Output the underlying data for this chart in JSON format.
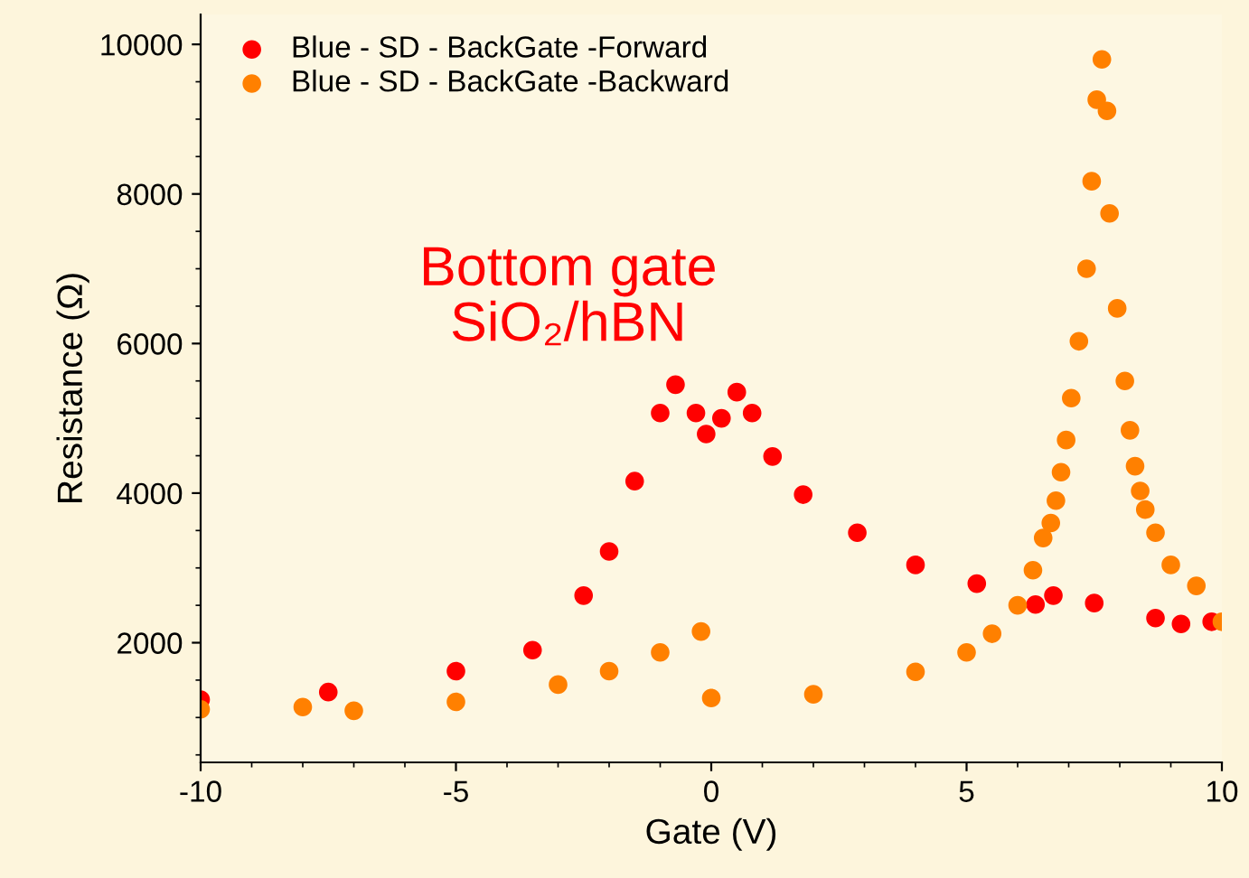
{
  "chart_data": {
    "type": "scatter",
    "xlabel": "Gate (V)",
    "ylabel": "Resistance (Ω)",
    "xlim": [
      -10,
      10
    ],
    "xticks": [
      -10,
      -5,
      0,
      5,
      10
    ],
    "ylim": [
      400,
      10400
    ],
    "yticks": [
      2000,
      4000,
      6000,
      8000,
      10000
    ],
    "grid": false,
    "legend": "top left",
    "marker": "circle",
    "annotations": [
      "Bottom gate\nSiO₂/hBN"
    ],
    "series": [
      {
        "name": "Blue - SD - BackGate -Forward",
        "color": "#ff0000",
        "x": [
          -10,
          -7.5,
          -5,
          -3.5,
          -2.5,
          -2,
          -1.5,
          -1,
          -0.7,
          -0.3,
          -0.1,
          0.2,
          0.5,
          0.8,
          1.2,
          1.8,
          2.86,
          4.0,
          5.2,
          6.35,
          6.7,
          7.5,
          8.7,
          9.2,
          9.8
        ],
        "values": [
          1240,
          1340,
          1620,
          1900,
          2630,
          3220,
          4160,
          5070,
          5450,
          5070,
          4790,
          5000,
          5350,
          5070,
          4490,
          3980,
          3470,
          3040,
          2790,
          2510,
          2630,
          2530,
          2330,
          2250,
          2280
        ]
      },
      {
        "name": "Blue - SD - BackGate -Backward",
        "color": "#ff8000",
        "x": [
          -10,
          -8,
          -7,
          -5,
          -3,
          -2,
          -1,
          -0.2,
          0,
          2,
          4,
          5,
          5.5,
          6,
          6.3,
          6.5,
          6.65,
          6.75,
          6.85,
          6.95,
          7.05,
          7.2,
          7.35,
          7.45,
          7.55,
          7.65,
          7.75,
          7.8,
          7.95,
          8.1,
          8.2,
          8.3,
          8.4,
          8.5,
          8.7,
          9.0,
          9.5,
          10
        ],
        "values": [
          1110,
          1140,
          1090,
          1210,
          1440,
          1620,
          1870,
          2150,
          1260,
          1310,
          1610,
          1870,
          2120,
          2500,
          2970,
          3400,
          3600,
          3900,
          4280,
          4710,
          5270,
          6030,
          7000,
          8170,
          9260,
          9800,
          9110,
          7740,
          6470,
          5500,
          4840,
          4360,
          4030,
          3780,
          3470,
          3040,
          2760,
          2280
        ]
      }
    ]
  }
}
